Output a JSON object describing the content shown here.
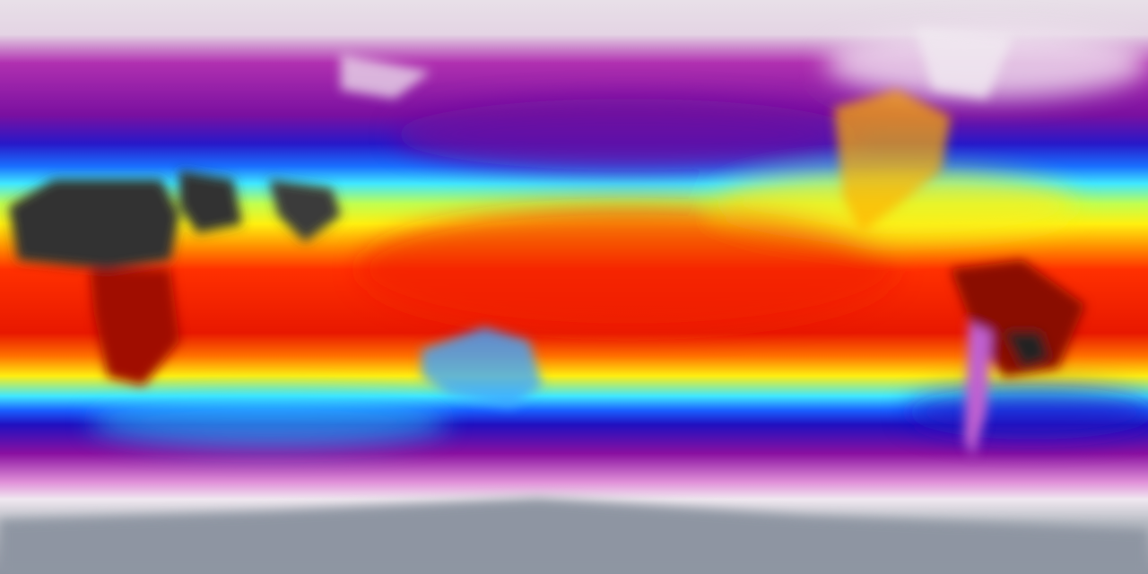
{
  "map": {
    "projection": "equirectangular",
    "colormap": [
      "#e6dce6",
      "#c050c0",
      "#8a10a0",
      "#2a10c8",
      "#1060ff",
      "#40e8ff",
      "#c8ff40",
      "#ffee10",
      "#ff9a00",
      "#ff3000",
      "#e81800"
    ],
    "colors": {
      "polar_north": "#e6dce6",
      "polar_south": "#9aa0ac",
      "antarctica": "#8e95a2",
      "hot_desert": "#333333",
      "tropics": "#e82000"
    }
  }
}
